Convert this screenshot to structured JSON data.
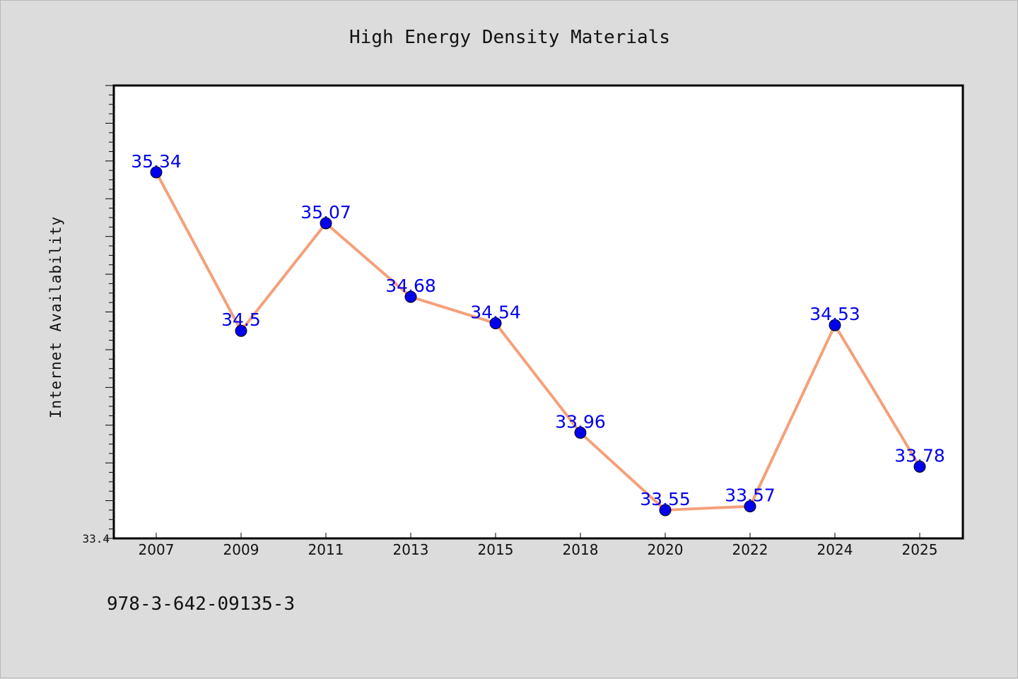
{
  "chart_data": {
    "type": "line",
    "title": "High Energy Density Materials",
    "xlabel": "",
    "ylabel": "Internet Availability",
    "categories": [
      "2007",
      "2009",
      "2011",
      "2013",
      "2015",
      "2018",
      "2020",
      "2022",
      "2024",
      "2025"
    ],
    "series": [
      {
        "values": [
          35.34,
          34.5,
          35.07,
          34.68,
          34.54,
          33.96,
          33.55,
          33.57,
          34.53,
          33.78
        ],
        "labels": [
          "35.34",
          "34.5",
          "35.07",
          "34.68",
          "34.54",
          "33.96",
          "33.55",
          "33.57",
          "34.53",
          "33.78"
        ]
      }
    ],
    "ylim": [
      33.4,
      35.8
    ],
    "yticks_labeled": [
      "33.4"
    ],
    "grid": false,
    "legend": "none",
    "line_color": "#f4a07a",
    "marker_color": "#0000ee",
    "label_color": "#0000ee",
    "plot_background": "#ffffff",
    "figure_background": "#dcdcdc"
  },
  "footer": {
    "isbn": "978-3-642-09135-3"
  }
}
